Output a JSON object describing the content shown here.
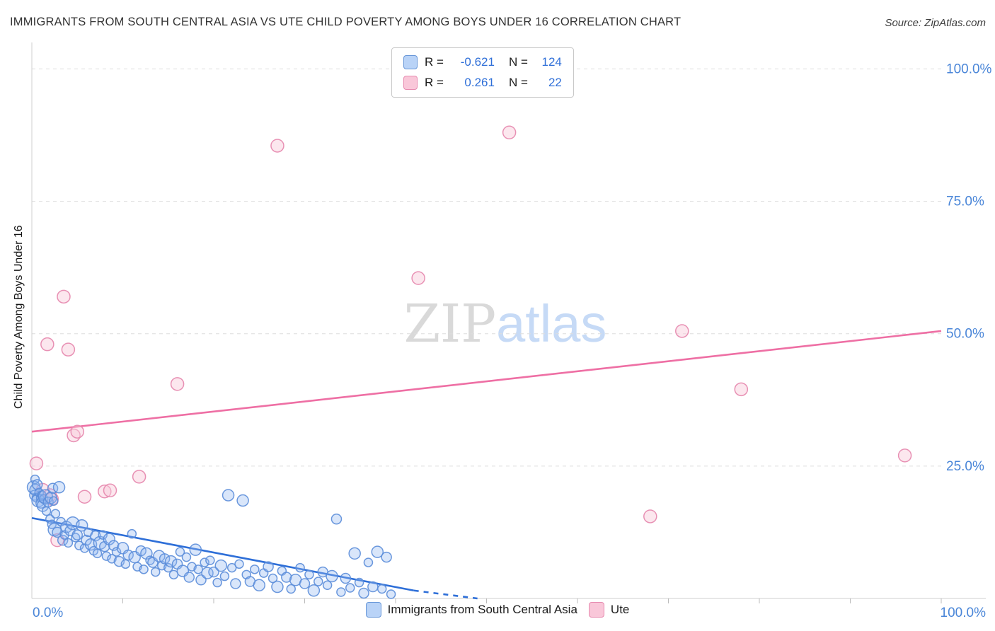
{
  "header": {
    "title": "IMMIGRANTS FROM SOUTH CENTRAL ASIA VS UTE CHILD POVERTY AMONG BOYS UNDER 16 CORRELATION CHART",
    "source": "Source: ZipAtlas.com"
  },
  "watermark": {
    "zip": "ZIP",
    "atlas": "atlas"
  },
  "legend_box": {
    "rows": [
      {
        "r_label": "R =",
        "r_value": "-0.621",
        "n_label": "N =",
        "n_value": "124"
      },
      {
        "r_label": "R =",
        "r_value": "0.261",
        "n_label": "N =",
        "n_value": "22"
      }
    ]
  },
  "bottom_legend": {
    "items": [
      {
        "label": "Immigrants from South Central Asia",
        "color": "#b9d3f7"
      },
      {
        "label": "Ute",
        "color": "#f9c7d9"
      }
    ]
  },
  "axes": {
    "y_label": "Child Poverty Among Boys Under 16",
    "x_min_label": "0.0%",
    "x_max_label": "100.0%",
    "y_tick_labels": [
      "100.0%",
      "75.0%",
      "50.0%",
      "25.0%"
    ],
    "label_color": "#4a86d8"
  },
  "chart_data": {
    "type": "scatter",
    "title": "Immigrants from South Central Asia vs Ute Child Poverty Among Boys Under 16",
    "xlabel": "Immigrants from South Central Asia (%)",
    "ylabel": "Child Poverty Among Boys Under 16 (%)",
    "xlim": [
      0,
      100
    ],
    "ylim": [
      0,
      105
    ],
    "grid": "horizontal-dashed",
    "y_gridlines": [
      25,
      50,
      75,
      100
    ],
    "x_ticks": [
      10,
      20,
      30,
      40,
      50,
      60,
      70,
      80,
      90,
      100
    ],
    "legend_position": "top-center",
    "series": [
      {
        "name": "Immigrants from South Central Asia",
        "R": -0.621,
        "N": 124,
        "point_color": "#93b7f0",
        "point_stroke": "#5b8dd9",
        "points": [
          [
            0.2,
            21,
            9
          ],
          [
            0.3,
            19.5,
            7
          ],
          [
            0.35,
            22.5,
            6
          ],
          [
            0.4,
            20.5,
            8
          ],
          [
            0.5,
            19,
            6
          ],
          [
            0.6,
            21.5,
            7
          ],
          [
            0.7,
            18.5,
            9
          ],
          [
            0.8,
            20,
            6
          ],
          [
            0.9,
            19,
            5
          ],
          [
            1.0,
            18,
            7
          ],
          [
            1.1,
            19.5,
            6
          ],
          [
            1.2,
            17.5,
            8
          ],
          [
            1.3,
            18.8,
            6
          ],
          [
            1.5,
            19.2,
            10
          ],
          [
            1.6,
            16.5,
            6
          ],
          [
            1.8,
            18.2,
            7
          ],
          [
            2.0,
            15,
            6
          ],
          [
            2.1,
            19,
            8
          ],
          [
            2.2,
            14,
            6
          ],
          [
            2.3,
            20.8,
            7
          ],
          [
            2.4,
            18.4,
            6
          ],
          [
            2.5,
            13,
            9
          ],
          [
            2.6,
            16,
            6
          ],
          [
            2.8,
            12.5,
            7
          ],
          [
            3.0,
            21,
            8
          ],
          [
            3.2,
            14.5,
            6
          ],
          [
            3.4,
            11,
            7
          ],
          [
            3.6,
            12,
            6
          ],
          [
            3.8,
            13.5,
            8
          ],
          [
            4.0,
            10.5,
            6
          ],
          [
            4.2,
            12.8,
            7
          ],
          [
            4.5,
            14.2,
            9
          ],
          [
            4.8,
            11.5,
            6
          ],
          [
            5.0,
            12,
            7
          ],
          [
            5.2,
            10,
            6
          ],
          [
            5.5,
            13.8,
            8
          ],
          [
            5.8,
            9.5,
            6
          ],
          [
            6.0,
            11,
            7
          ],
          [
            6.2,
            12.5,
            6
          ],
          [
            6.5,
            10.2,
            8
          ],
          [
            6.8,
            9,
            6
          ],
          [
            7.0,
            11.8,
            7
          ],
          [
            7.2,
            8.5,
            6
          ],
          [
            7.5,
            10.5,
            9
          ],
          [
            7.8,
            12,
            6
          ],
          [
            8.0,
            9.8,
            7
          ],
          [
            8.2,
            8,
            6
          ],
          [
            8.5,
            11.2,
            8
          ],
          [
            8.8,
            7.5,
            6
          ],
          [
            9.0,
            10,
            7
          ],
          [
            9.3,
            8.8,
            6
          ],
          [
            9.6,
            7,
            7
          ],
          [
            10.0,
            9.5,
            8
          ],
          [
            10.3,
            6.5,
            6
          ],
          [
            10.6,
            8.2,
            7
          ],
          [
            11.0,
            12.2,
            6
          ],
          [
            11.3,
            7.8,
            8
          ],
          [
            11.6,
            6,
            6
          ],
          [
            12.0,
            9,
            7
          ],
          [
            12.3,
            5.5,
            6
          ],
          [
            12.6,
            8.5,
            8
          ],
          [
            13.0,
            7.2,
            6
          ],
          [
            13.3,
            6.8,
            7
          ],
          [
            13.6,
            5,
            6
          ],
          [
            14.0,
            8,
            8
          ],
          [
            14.3,
            6.2,
            6
          ],
          [
            14.6,
            7.5,
            7
          ],
          [
            15.0,
            5.8,
            6
          ],
          [
            15.3,
            7,
            8
          ],
          [
            15.6,
            4.5,
            6
          ],
          [
            16.0,
            6.5,
            7
          ],
          [
            16.3,
            8.8,
            6
          ],
          [
            16.6,
            5.2,
            8
          ],
          [
            17.0,
            7.8,
            6
          ],
          [
            17.3,
            4,
            7
          ],
          [
            17.6,
            6,
            6
          ],
          [
            18.0,
            9.2,
            8
          ],
          [
            18.3,
            5.5,
            6
          ],
          [
            18.6,
            3.5,
            7
          ],
          [
            19.0,
            6.8,
            6
          ],
          [
            19.3,
            4.8,
            8
          ],
          [
            19.6,
            7.2,
            6
          ],
          [
            20.0,
            5,
            7
          ],
          [
            20.4,
            3,
            6
          ],
          [
            20.8,
            6.2,
            8
          ],
          [
            21.2,
            4.2,
            6
          ],
          [
            21.6,
            19.5,
            8
          ],
          [
            22.0,
            5.8,
            6
          ],
          [
            22.4,
            2.8,
            7
          ],
          [
            22.8,
            6.5,
            6
          ],
          [
            23.2,
            18.5,
            8
          ],
          [
            23.6,
            4.5,
            6
          ],
          [
            24.0,
            3.2,
            7
          ],
          [
            24.5,
            5.5,
            6
          ],
          [
            25.0,
            2.5,
            8
          ],
          [
            25.5,
            4.8,
            6
          ],
          [
            26.0,
            6,
            7
          ],
          [
            26.5,
            3.8,
            6
          ],
          [
            27.0,
            2.2,
            8
          ],
          [
            27.5,
            5.2,
            6
          ],
          [
            28.0,
            4,
            7
          ],
          [
            28.5,
            1.8,
            6
          ],
          [
            29.0,
            3.5,
            8
          ],
          [
            29.5,
            5.8,
            6
          ],
          [
            30.0,
            2.8,
            7
          ],
          [
            30.5,
            4.5,
            6
          ],
          [
            31.0,
            1.5,
            8
          ],
          [
            31.5,
            3.2,
            6
          ],
          [
            32.0,
            5,
            7
          ],
          [
            32.5,
            2.5,
            6
          ],
          [
            33.0,
            4.2,
            8
          ],
          [
            33.5,
            15,
            7
          ],
          [
            34.0,
            1.2,
            6
          ],
          [
            34.5,
            3.8,
            7
          ],
          [
            35.0,
            2,
            6
          ],
          [
            35.5,
            8.5,
            8
          ],
          [
            36.0,
            3,
            6
          ],
          [
            36.5,
            1,
            7
          ],
          [
            37.0,
            6.8,
            6
          ],
          [
            37.5,
            2.2,
            7
          ],
          [
            38.0,
            8.8,
            8
          ],
          [
            38.5,
            1.8,
            6
          ],
          [
            39.0,
            7.8,
            7
          ],
          [
            39.5,
            0.8,
            6
          ]
        ]
      },
      {
        "name": "Ute",
        "R": 0.261,
        "N": 22,
        "point_color": "#f9c9da",
        "point_stroke": "#e78bb0",
        "points": [
          [
            0.5,
            25.5
          ],
          [
            1.2,
            20.5
          ],
          [
            1.7,
            48
          ],
          [
            2.0,
            19.5
          ],
          [
            2.2,
            18.8
          ],
          [
            2.8,
            11
          ],
          [
            3.5,
            57
          ],
          [
            4.0,
            47
          ],
          [
            4.6,
            30.8
          ],
          [
            5.0,
            31.5
          ],
          [
            5.8,
            19.2
          ],
          [
            8.0,
            20.2
          ],
          [
            8.6,
            20.4
          ],
          [
            11.8,
            23
          ],
          [
            16.0,
            40.5
          ],
          [
            27.0,
            85.5
          ],
          [
            42.5,
            60.5
          ],
          [
            52.5,
            88
          ],
          [
            68.0,
            15.5
          ],
          [
            71.5,
            50.5
          ],
          [
            78.0,
            39.5
          ],
          [
            96.0,
            27
          ]
        ]
      }
    ],
    "trend_lines": [
      {
        "series": "Immigrants from South Central Asia",
        "color": "#2e6fd8",
        "solid": [
          [
            0,
            15.2
          ],
          [
            42,
            1.5
          ]
        ],
        "dashed": [
          [
            42,
            1.5
          ],
          [
            49,
            0.0
          ]
        ]
      },
      {
        "series": "Ute",
        "color": "#ee6fa4",
        "solid": [
          [
            0,
            31.5
          ],
          [
            100,
            50.5
          ]
        ]
      }
    ]
  }
}
